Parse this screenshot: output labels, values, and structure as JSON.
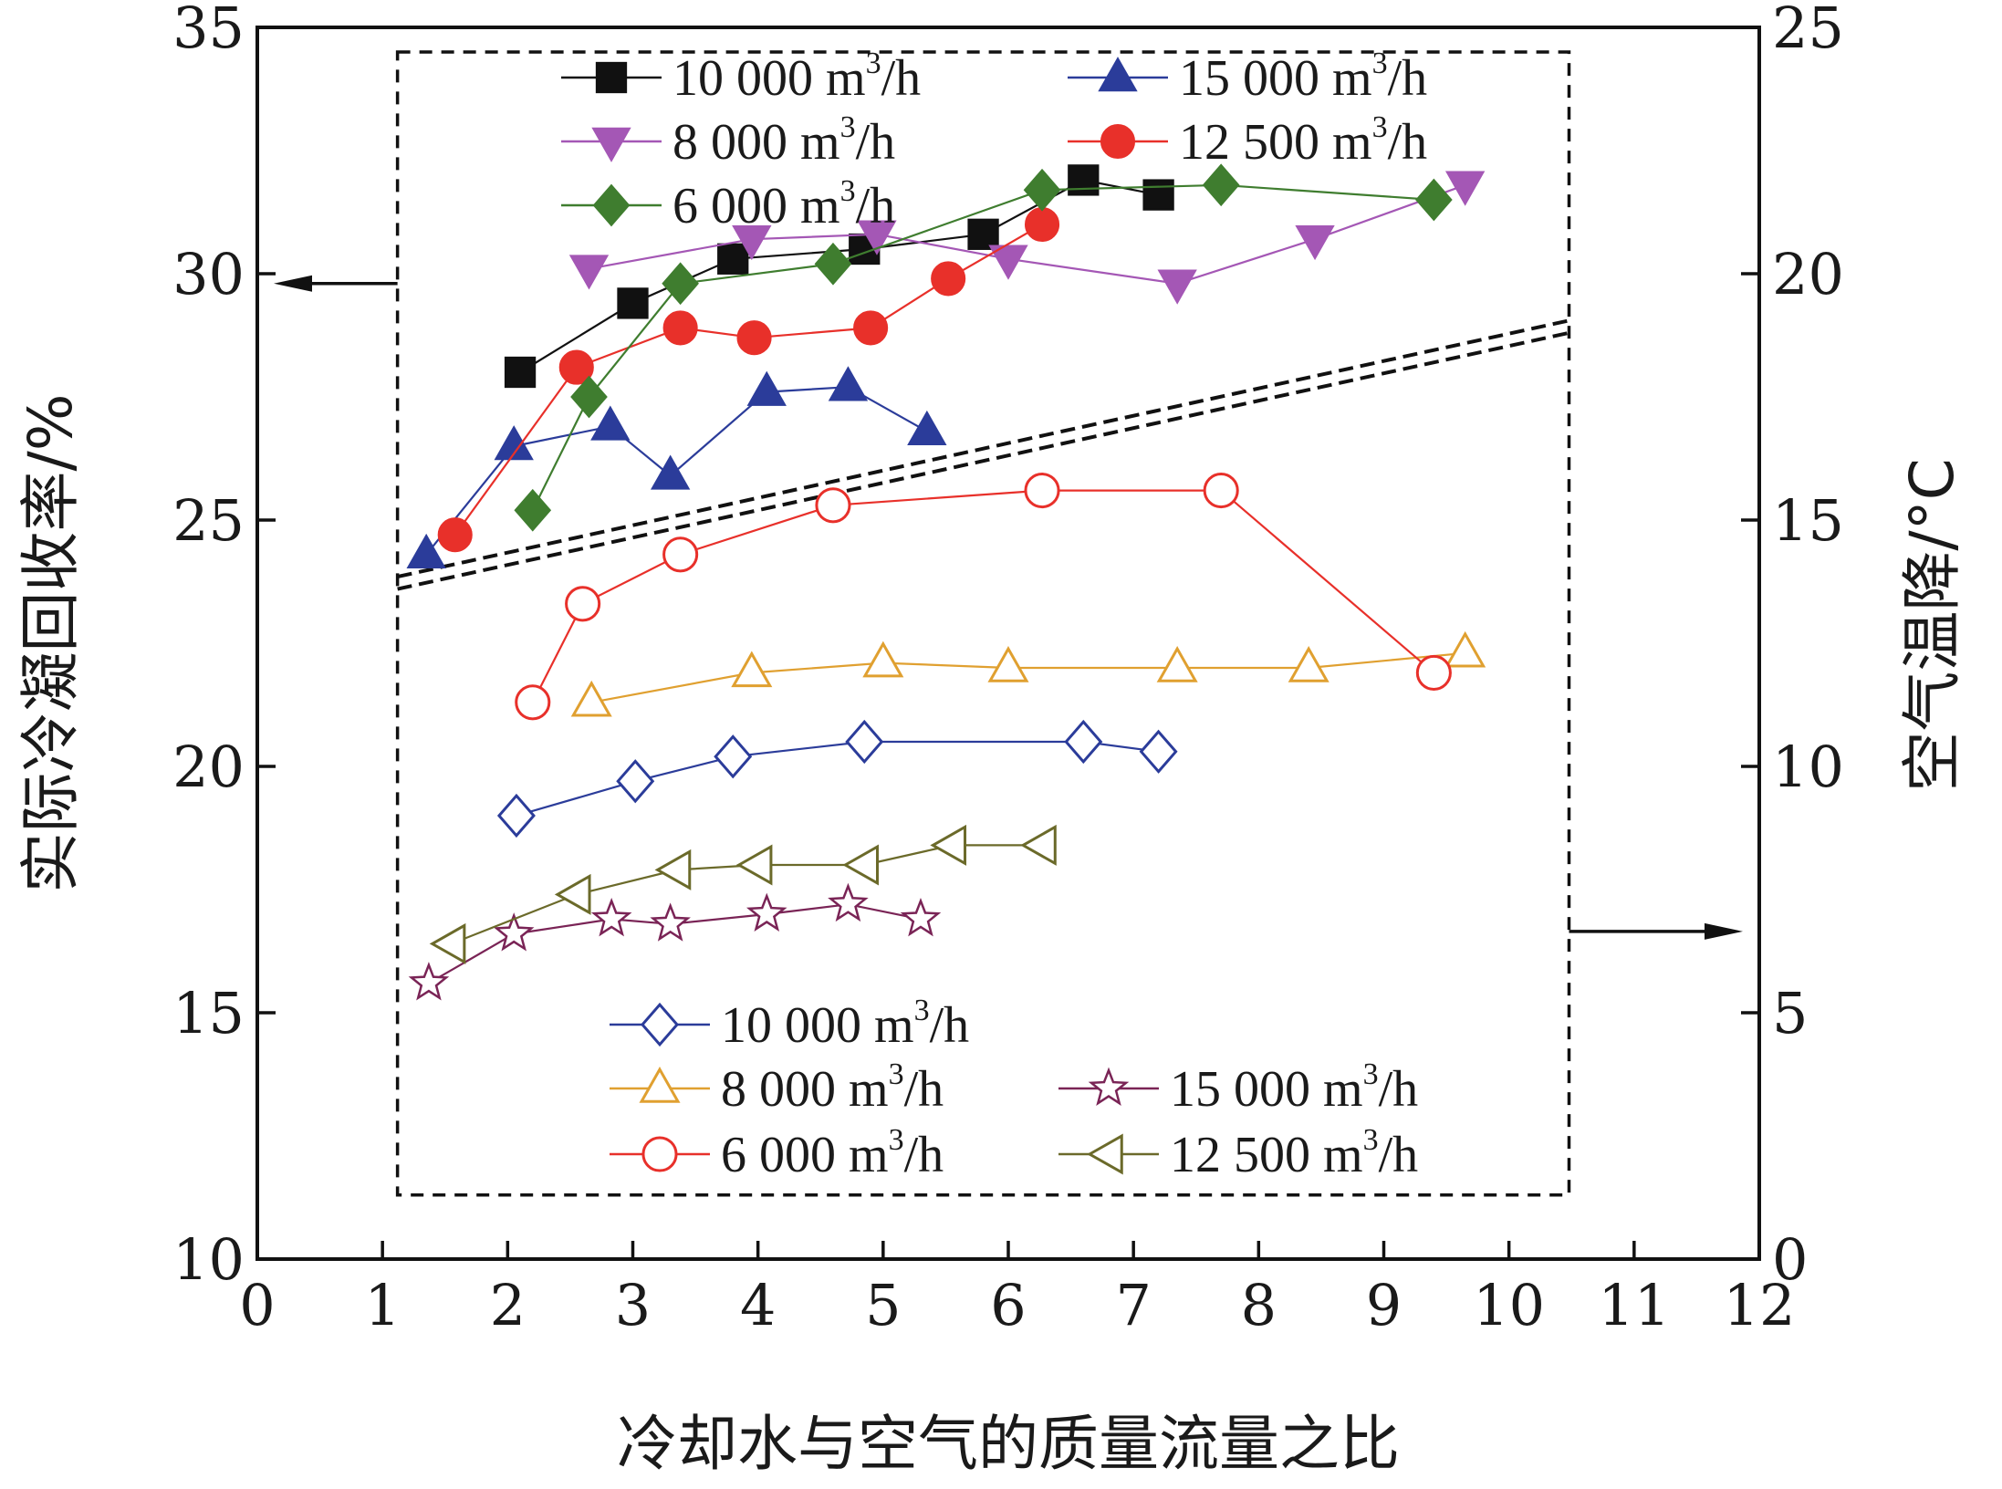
{
  "chart_data": {
    "type": "line",
    "title": "",
    "xlabel": "冷却水与空气的质量流量之比",
    "ylabel_left": "实际冷凝回收率/%",
    "ylabel_right": "空气温降/°C",
    "xlim": [
      0,
      12
    ],
    "ylim_left": [
      10,
      35
    ],
    "ylim_right": [
      0,
      25
    ],
    "x_ticks": [
      "0",
      "1",
      "2",
      "3",
      "4",
      "5",
      "6",
      "7",
      "8",
      "9",
      "10",
      "11",
      "12"
    ],
    "y_ticks_left": [
      "10",
      "15",
      "20",
      "25",
      "30",
      "35"
    ],
    "y_ticks_right": [
      "0",
      "5",
      "10",
      "15",
      "20",
      "25"
    ],
    "legend_unit": " m",
    "legend_unit_sup": "3",
    "legend_unit_tail": "/h",
    "series": [
      {
        "name": "10 000",
        "axis": "left",
        "marker": "square",
        "filled": true,
        "color": "#111111",
        "x": [
          2.1,
          3.0,
          3.8,
          4.85,
          5.8,
          6.6,
          7.2
        ],
        "y": [
          28.0,
          29.4,
          30.3,
          30.5,
          30.8,
          31.9,
          31.6
        ]
      },
      {
        "name": "15 000",
        "axis": "left",
        "marker": "triangle-up",
        "filled": true,
        "color": "#2b3c9a",
        "x": [
          1.35,
          2.05,
          2.82,
          3.3,
          4.07,
          4.72,
          5.35
        ],
        "y": [
          24.3,
          26.5,
          26.9,
          25.9,
          27.6,
          27.7,
          26.8
        ]
      },
      {
        "name": "8 000",
        "axis": "left",
        "marker": "triangle-down",
        "filled": true,
        "color": "#a457b5",
        "x": [
          2.65,
          3.95,
          4.95,
          6.0,
          7.35,
          8.45,
          9.65
        ],
        "y": [
          30.1,
          30.7,
          30.8,
          30.3,
          29.8,
          30.7,
          31.8
        ]
      },
      {
        "name": "12 500",
        "axis": "left",
        "marker": "circle",
        "filled": true,
        "color": "#e8302a",
        "x": [
          1.58,
          2.55,
          3.38,
          3.97,
          4.9,
          5.52,
          6.27
        ],
        "y": [
          24.7,
          28.1,
          28.9,
          28.7,
          28.9,
          29.9,
          31.0
        ]
      },
      {
        "name": "6 000",
        "axis": "left",
        "marker": "diamond",
        "filled": true,
        "color": "#3f7d2f",
        "x": [
          2.2,
          2.65,
          3.38,
          4.6,
          6.27,
          7.7,
          9.4
        ],
        "y": [
          25.2,
          27.5,
          29.8,
          30.2,
          31.7,
          31.8,
          31.5
        ]
      },
      {
        "name": "10 000",
        "axis": "right",
        "marker": "diamond",
        "filled": false,
        "color": "#2b3c9a",
        "x": [
          2.07,
          3.02,
          3.8,
          4.85,
          6.6,
          7.2
        ],
        "y": [
          9.0,
          9.7,
          10.2,
          10.5,
          10.5,
          10.3
        ]
      },
      {
        "name": "8 000",
        "axis": "right",
        "marker": "triangle-up",
        "filled": false,
        "color": "#e0a030",
        "x": [
          2.67,
          3.95,
          5.0,
          6.0,
          7.35,
          8.4,
          9.65
        ],
        "y": [
          11.3,
          11.9,
          12.1,
          12.0,
          12.0,
          12.0,
          12.3
        ]
      },
      {
        "name": "6 000",
        "axis": "right",
        "marker": "circle",
        "filled": false,
        "color": "#e8302a",
        "x": [
          2.2,
          2.6,
          3.38,
          4.6,
          6.27,
          7.7,
          9.4
        ],
        "y": [
          11.3,
          13.3,
          14.3,
          15.3,
          15.6,
          15.6,
          11.9
        ]
      },
      {
        "name": "15 000",
        "axis": "right",
        "marker": "star",
        "filled": false,
        "color": "#7a2456",
        "x": [
          1.37,
          2.05,
          2.83,
          3.3,
          4.07,
          4.72,
          5.3
        ],
        "y": [
          5.6,
          6.6,
          6.9,
          6.8,
          7.0,
          7.2,
          6.9
        ]
      },
      {
        "name": "12 500",
        "axis": "right",
        "marker": "triangle-left",
        "filled": false,
        "color": "#6b6a2a",
        "x": [
          1.55,
          2.55,
          3.35,
          4.0,
          4.85,
          5.55,
          6.27
        ],
        "y": [
          6.4,
          7.4,
          7.9,
          8.0,
          8.0,
          8.4,
          8.4
        ]
      }
    ],
    "annotations": {
      "divider": "double dashed line separating left-axis series (above) and right-axis series (below)",
      "arrows": [
        "left arrow points to left axis",
        "right arrow points to right axis"
      ]
    }
  }
}
